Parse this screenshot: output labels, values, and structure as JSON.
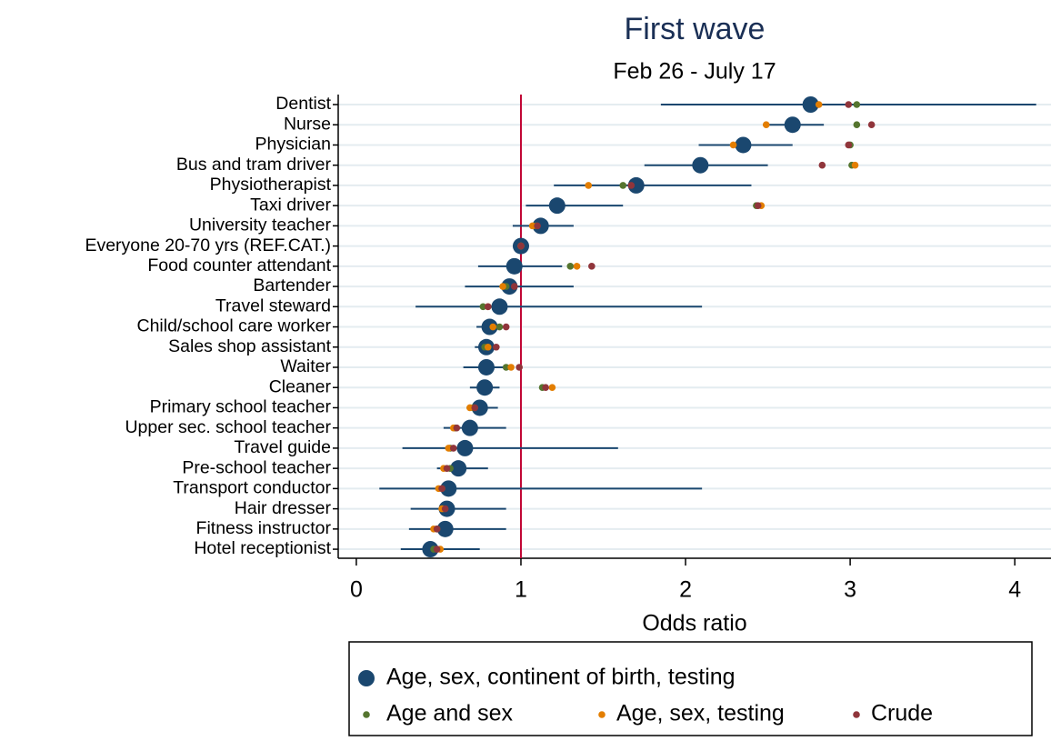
{
  "chart_data": {
    "type": "dot",
    "title": "First wave",
    "subtitle": "Feb 26 - July 17",
    "x_label": "Odds ratio",
    "categories": [
      "Dentist",
      "Nurse",
      "Physician",
      "Bus and tram driver",
      "Physiotherapist",
      "Taxi driver",
      "University teacher",
      "Everyone 20-70 yrs (REF.CAT.)",
      "Food counter attendant",
      "Bartender",
      "Travel steward",
      "Child/school care worker",
      "Sales shop assistant",
      "Waiter",
      "Cleaner",
      "Primary school teacher",
      "Upper sec. school teacher",
      "Travel guide",
      "Pre-school teacher",
      "Transport conductor",
      "Hair dresser",
      "Fitness instructor",
      "Hotel receptionist"
    ],
    "series": [
      {
        "name": "Age, sex, continent of birth, testing",
        "color": "#1a476f",
        "values": [
          2.76,
          2.65,
          2.35,
          2.09,
          1.7,
          1.22,
          1.12,
          1.0,
          0.96,
          0.93,
          0.87,
          0.81,
          0.79,
          0.79,
          0.78,
          0.75,
          0.69,
          0.66,
          0.62,
          0.56,
          0.55,
          0.54,
          0.45
        ],
        "lower": [
          1.85,
          2.47,
          2.08,
          1.75,
          1.2,
          1.03,
          0.95,
          null,
          0.74,
          0.66,
          0.36,
          0.73,
          0.72,
          0.65,
          0.69,
          0.67,
          0.53,
          0.28,
          0.49,
          0.14,
          0.33,
          0.32,
          0.27
        ],
        "upper": [
          4.13,
          2.84,
          2.65,
          2.5,
          2.4,
          1.62,
          1.32,
          null,
          1.25,
          1.32,
          2.1,
          0.9,
          0.86,
          0.92,
          0.87,
          0.86,
          0.91,
          1.59,
          0.8,
          2.1,
          0.91,
          0.91,
          0.75
        ]
      },
      {
        "name": "Age and sex",
        "color": "#55752f",
        "values": [
          3.04,
          3.04,
          3.0,
          3.01,
          1.62,
          2.43,
          1.09,
          1.0,
          1.3,
          0.91,
          0.77,
          0.87,
          0.78,
          0.91,
          1.13,
          0.71,
          0.6,
          0.57,
          0.57,
          0.52,
          0.53,
          0.49,
          0.47
        ]
      },
      {
        "name": "Age, sex, testing",
        "color": "#e37e00",
        "values": [
          2.81,
          2.49,
          2.29,
          3.03,
          1.41,
          2.46,
          1.07,
          1.0,
          1.34,
          0.89,
          0.8,
          0.83,
          0.8,
          0.94,
          1.19,
          0.69,
          0.59,
          0.56,
          0.53,
          0.5,
          0.52,
          0.47,
          0.51
        ]
      },
      {
        "name": "Crude",
        "color": "#90353b",
        "values": [
          2.99,
          3.13,
          2.99,
          2.83,
          1.67,
          2.44,
          1.1,
          1.0,
          1.43,
          0.96,
          0.8,
          0.91,
          0.85,
          0.99,
          1.15,
          0.72,
          0.61,
          0.59,
          0.55,
          0.52,
          0.54,
          0.49,
          0.49
        ]
      }
    ],
    "reference_line": {
      "value": 1,
      "color": "#c10534"
    },
    "xlim": [
      -0.11,
      4.22
    ],
    "xticks": [
      0,
      1,
      2,
      3,
      4
    ],
    "grid": true
  }
}
